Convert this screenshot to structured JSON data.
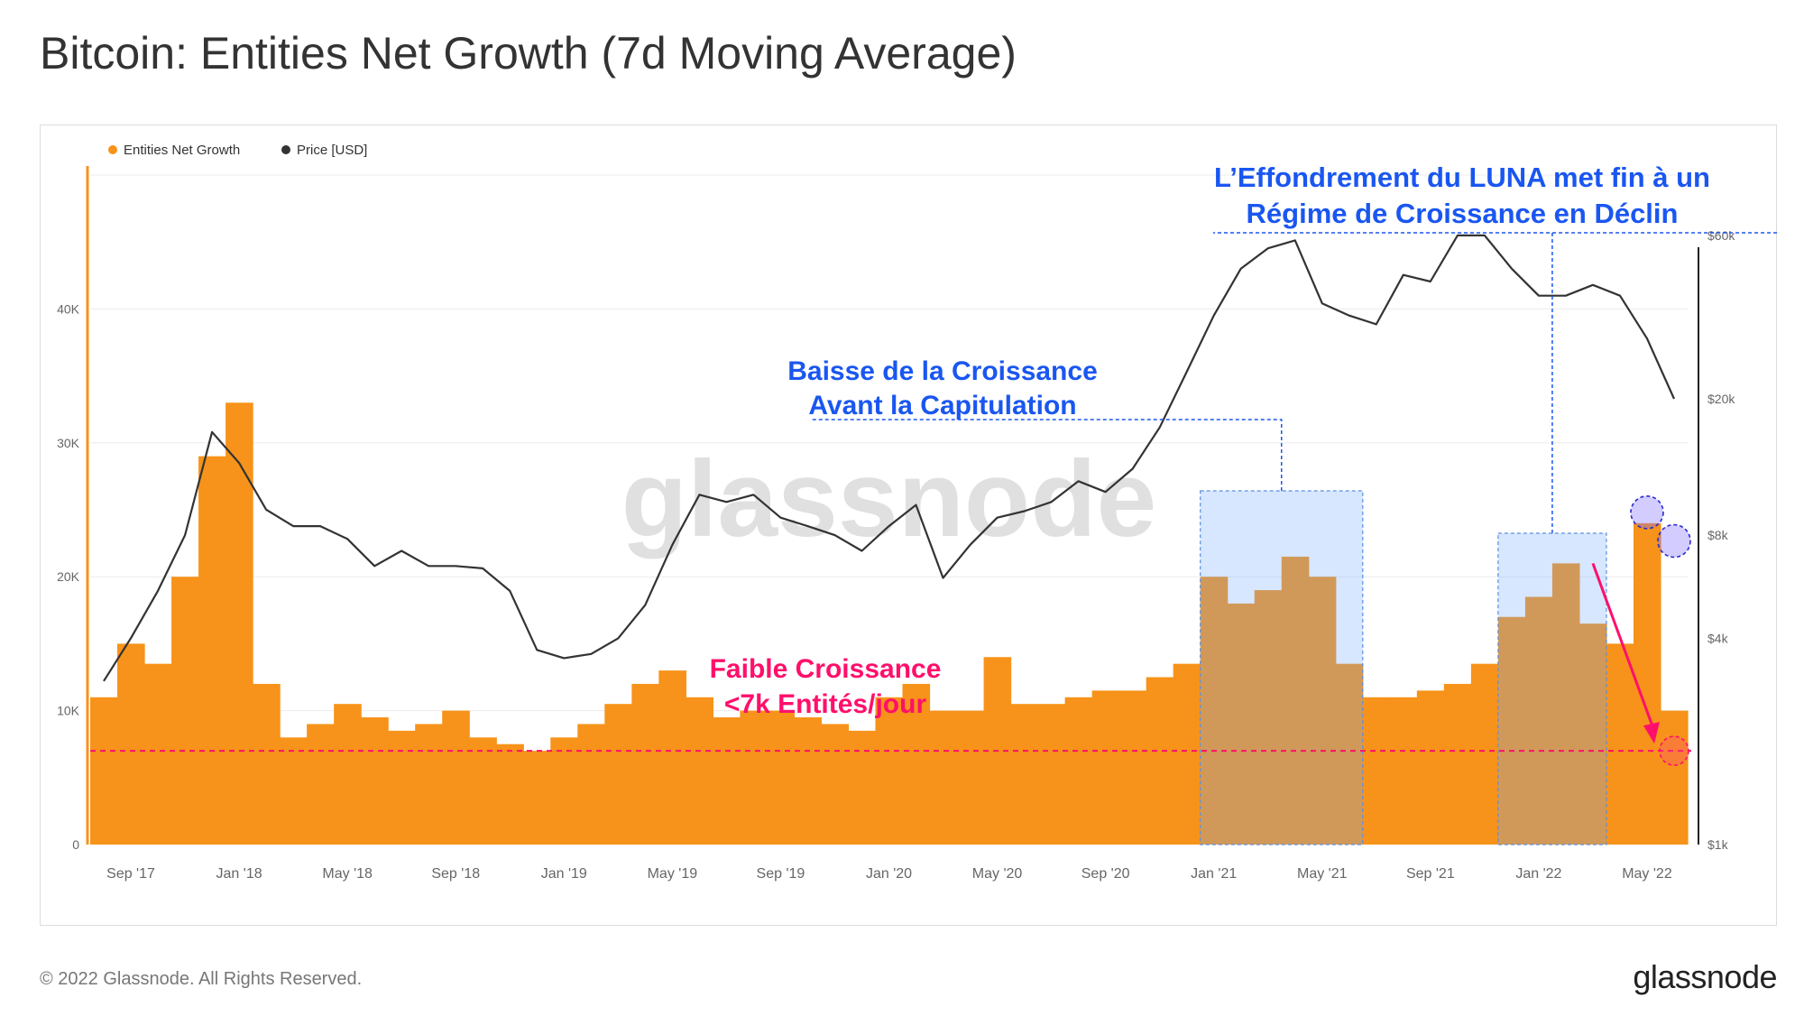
{
  "page": {
    "title": "Bitcoin: Entities Net Growth (7d Moving Average)",
    "copyright": "© 2022 Glassnode. All Rights Reserved.",
    "brand": "glassnode",
    "watermark": "glassnode"
  },
  "chart_data": {
    "type": "bar+line",
    "title": "Bitcoin: Entities Net Growth (7d Moving Average)",
    "legend": [
      {
        "name": "Entities Net Growth",
        "color": "#f7931a"
      },
      {
        "name": "Price [USD]",
        "color": "#333333"
      }
    ],
    "x_ticks": [
      "Sep '17",
      "Jan '18",
      "May '18",
      "Sep '18",
      "Jan '19",
      "May '19",
      "Sep '19",
      "Jan '20",
      "May '20",
      "Sep '20",
      "Jan '21",
      "May '21",
      "Sep '21",
      "Jan '22",
      "May '22"
    ],
    "x_range": [
      "2017-08-01",
      "2022-06-20"
    ],
    "y_left": {
      "ticks": [
        "0",
        "10K",
        "20K",
        "30K",
        "40K"
      ],
      "values": [
        0,
        10000,
        20000,
        30000,
        40000
      ],
      "range": [
        0,
        50000
      ]
    },
    "y_right": {
      "scale": "log",
      "ticks": [
        "$1k",
        "$4k",
        "$8k",
        "$20k",
        "$60k"
      ],
      "values": [
        1000,
        4000,
        8000,
        20000,
        60000
      ],
      "range": [
        1000,
        90000
      ]
    },
    "series": [
      {
        "name": "Entities Net Growth",
        "unit": "entities/day",
        "months": [
          "Aug '17",
          "Sep '17",
          "Oct '17",
          "Nov '17",
          "Dec '17",
          "Jan '18",
          "Feb '18",
          "Mar '18",
          "Apr '18",
          "May '18",
          "Jun '18",
          "Jul '18",
          "Aug '18",
          "Sep '18",
          "Oct '18",
          "Nov '18",
          "Dec '18",
          "Jan '19",
          "Feb '19",
          "Mar '19",
          "Apr '19",
          "May '19",
          "Jun '19",
          "Jul '19",
          "Aug '19",
          "Sep '19",
          "Oct '19",
          "Nov '19",
          "Dec '19",
          "Jan '20",
          "Feb '20",
          "Mar '20",
          "Apr '20",
          "May '20",
          "Jun '20",
          "Jul '20",
          "Aug '20",
          "Sep '20",
          "Oct '20",
          "Nov '20",
          "Dec '20",
          "Jan '21",
          "Feb '21",
          "Mar '21",
          "Apr '21",
          "May '21",
          "Jun '21",
          "Jul '21",
          "Aug '21",
          "Sep '21",
          "Oct '21",
          "Nov '21",
          "Dec '21",
          "Jan '22",
          "Feb '22",
          "Mar '22",
          "Apr '22",
          "May '22",
          "Jun '22"
        ],
        "values": [
          11000,
          15000,
          13500,
          20000,
          29000,
          33000,
          12000,
          8000,
          9000,
          10500,
          9500,
          8500,
          9000,
          10000,
          8000,
          7500,
          7000,
          8000,
          9000,
          10500,
          12000,
          13000,
          11000,
          9500,
          10000,
          10000,
          9500,
          9000,
          8500,
          11000,
          12000,
          10000,
          10000,
          14000,
          10500,
          10500,
          11000,
          11500,
          11500,
          12500,
          13500,
          20000,
          18000,
          19000,
          21500,
          20000,
          13500,
          11000,
          11000,
          11500,
          12000,
          13500,
          17000,
          18500,
          21000,
          16500,
          15000,
          24000,
          10000
        ]
      },
      {
        "name": "Price [USD]",
        "unit": "USD",
        "months": [
          "Aug '17",
          "Sep '17",
          "Oct '17",
          "Nov '17",
          "Dec '17",
          "Jan '18",
          "Feb '18",
          "Mar '18",
          "Apr '18",
          "May '18",
          "Jun '18",
          "Jul '18",
          "Aug '18",
          "Sep '18",
          "Oct '18",
          "Nov '18",
          "Dec '18",
          "Jan '19",
          "Feb '19",
          "Mar '19",
          "Apr '19",
          "May '19",
          "Jun '19",
          "Jul '19",
          "Aug '19",
          "Sep '19",
          "Oct '19",
          "Nov '19",
          "Dec '19",
          "Jan '20",
          "Feb '20",
          "Mar '20",
          "Apr '20",
          "May '20",
          "Jun '20",
          "Jul '20",
          "Aug '20",
          "Sep '20",
          "Oct '20",
          "Nov '20",
          "Dec '20",
          "Jan '21",
          "Feb '21",
          "Mar '21",
          "Apr '21",
          "May '21",
          "Jun '21",
          "Jul '21",
          "Aug '21",
          "Sep '21",
          "Oct '21",
          "Nov '21",
          "Dec '21",
          "Jan '22",
          "Feb '22",
          "Mar '22",
          "Apr '22",
          "May '22",
          "Jun '22"
        ],
        "values": [
          3000,
          4000,
          5500,
          8000,
          16000,
          13000,
          9500,
          8500,
          8500,
          7800,
          6500,
          7200,
          6500,
          6500,
          6400,
          5500,
          3700,
          3500,
          3600,
          4000,
          5000,
          7500,
          10500,
          10000,
          10500,
          9000,
          8500,
          8000,
          7200,
          8500,
          9800,
          6000,
          7500,
          9000,
          9400,
          10000,
          11500,
          10700,
          12500,
          16500,
          24000,
          35000,
          48000,
          55000,
          58000,
          38000,
          35000,
          33000,
          46000,
          44000,
          60000,
          60000,
          48000,
          40000,
          40000,
          43000,
          40000,
          30000,
          20000
        ]
      }
    ],
    "annotations": [
      {
        "text_lines": [
          "Faible Croissance",
          "<7k Entités/jour"
        ],
        "color": "#ff0f6b"
      },
      {
        "text_lines": [
          "Baisse de la Croissance",
          "Avant la Capitulation"
        ],
        "color": "#1a56f0"
      },
      {
        "text_lines": [
          "L’Effondrement du LUNA met fin à un",
          "Régime de Croissance en Déclin"
        ],
        "color": "#1a56f0"
      }
    ],
    "threshold_line": {
      "value": 7000,
      "color": "#ff0f6b"
    }
  }
}
